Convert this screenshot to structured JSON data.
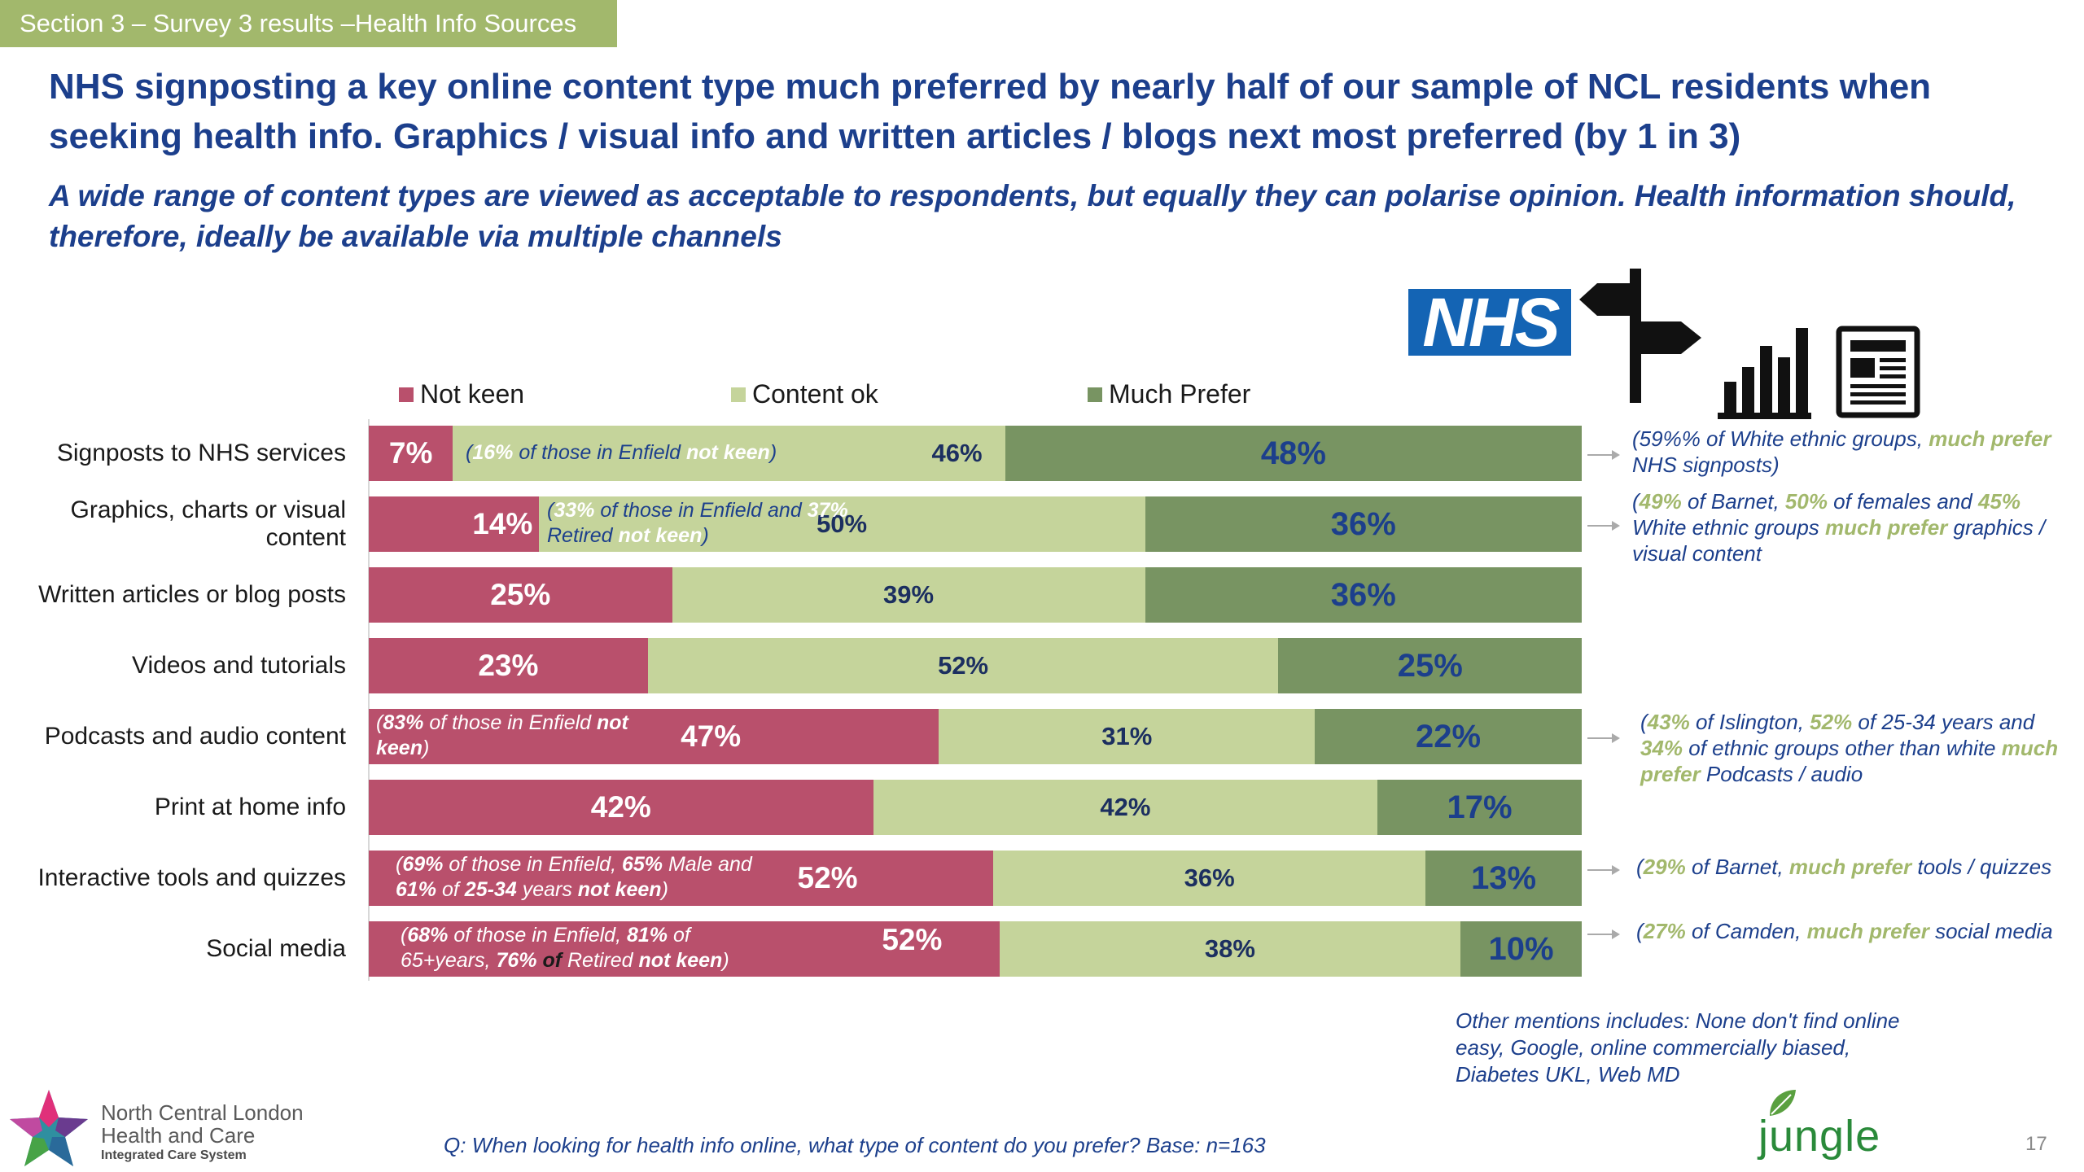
{
  "header": {
    "section_tab": "Section 3 – Survey 3 results –Health Info Sources",
    "title": "NHS signposting a key online content type much preferred by nearly half of our sample of NCL residents when seeking health info.  Graphics / visual info and written articles / blogs next most preferred (by 1 in 3)",
    "subtitle": "A wide range of content types are viewed as acceptable to respondents, but equally they can polarise opinion. Health information should, therefore, ideally be available via multiple channels"
  },
  "icons": {
    "nhs_logo": "NHS",
    "signpost": "signpost-icon",
    "barchart": "barchart-icon",
    "newspaper": "newspaper-icon"
  },
  "colors": {
    "not_keen": "#b9506c",
    "content_ok": "#c5d49b",
    "much_prefer": "#789462",
    "title": "#1c3f8c",
    "section_tab": "#a2b86c"
  },
  "chart_data": {
    "type": "bar",
    "orientation": "horizontal",
    "stacked": "100%",
    "legend_position": "top",
    "categories": [
      "Signposts to NHS services",
      "Graphics, charts or visual content",
      "Written articles or blog posts",
      "Videos and tutorials",
      "Podcasts and audio content",
      "Print at home info",
      "Interactive tools and quizzes",
      "Social media"
    ],
    "series": [
      {
        "name": "Not keen",
        "values": [
          7,
          14,
          25,
          23,
          47,
          42,
          52,
          52
        ],
        "labels": [
          "7%",
          "14%",
          "25%",
          "23%",
          "47%",
          "42%",
          "52%",
          "52%"
        ]
      },
      {
        "name": "Content ok",
        "values": [
          46,
          50,
          39,
          52,
          31,
          42,
          36,
          38
        ],
        "labels": [
          "46%",
          "50%",
          "39%",
          "52%",
          "31%",
          "42%",
          "36%",
          "38%"
        ]
      },
      {
        "name": "Much Prefer",
        "values": [
          48,
          36,
          36,
          25,
          22,
          17,
          13,
          10
        ],
        "labels": [
          "48%",
          "36%",
          "36%",
          "25%",
          "22%",
          "17%",
          "13%",
          "10%"
        ]
      }
    ]
  },
  "inbar_notes": {
    "signposts": {
      "open": "(",
      "pct": "16%",
      "mid": " of those in Enfield ",
      "tail": "not keen",
      "close": ")"
    },
    "graphics": {
      "open": "(",
      "pct1": "33%",
      "mid1": " of those in Enfield and ",
      "pct2": "37%",
      "mid2": " Retired ",
      "tail": "not keen",
      "close": ")"
    },
    "podcasts": {
      "open": "(",
      "pct": "83%",
      "mid": " of those in Enfield ",
      "tail": "not keen",
      "close": ")"
    },
    "interactive": {
      "open": "(",
      "pct1": "69%",
      "mid1": " of those in Enfield, ",
      "pct2": "65%",
      "mid2": " Male and ",
      "pct3": "61%",
      "mid3": " of ",
      "grp": "25-34",
      "mid4": " years ",
      "tail": "not keen",
      "close": ")"
    },
    "social": {
      "open": "(",
      "pct1": "68%",
      "mid1": " of those in Enfield, ",
      "pct2": "81%",
      "mid2": " of 65+years, ",
      "pct3": "76%",
      "mid3": " ",
      "of": "of",
      "mid4": " Retired ",
      "tail": "not keen",
      "close": ")"
    }
  },
  "side_notes": {
    "signposts": {
      "open": "(",
      "pct": "59%%",
      "mid": " of White ethnic groups, ",
      "hl": "much prefer",
      "tail": " NHS signposts)"
    },
    "graphics": {
      "open": "(",
      "a": "49%",
      "b": " of Barnet, ",
      "c": "50%",
      "d": " of females and ",
      "e": "45%",
      "f": " White ethnic groups ",
      "hl": "much prefer",
      "tail": "  graphics / visual content"
    },
    "podcasts": {
      "open": "(",
      "a": "43%",
      "b": " of Islington, ",
      "c": "52%",
      "d": " of 25-34 years and ",
      "e": "34%",
      "f": " of ethnic groups other than white  ",
      "hl": "much prefer",
      "tail": " Podcasts  / audio"
    },
    "interactive": {
      "open": "(",
      "a": "29%",
      "b": " of Barnet, ",
      "hl": "much prefer",
      "tail": " tools / quizzes"
    },
    "social": {
      "open": "(",
      "a": "27%",
      "b": " of Camden, ",
      "hl": "much prefer",
      "tail": " social media"
    }
  },
  "footer": {
    "other_mentions": "Other mentions includes: None don't find online easy, Google, online commercially biased, Diabetes UKL, Web MD",
    "question": "Q: When looking for health info online, what type of content do you prefer? Base: n=163",
    "page_number": "17",
    "ncl_line1": "North Central London",
    "ncl_line2": "Health and Care",
    "ncl_line3": "Integrated Care System",
    "jungle_green": "jungle green"
  }
}
